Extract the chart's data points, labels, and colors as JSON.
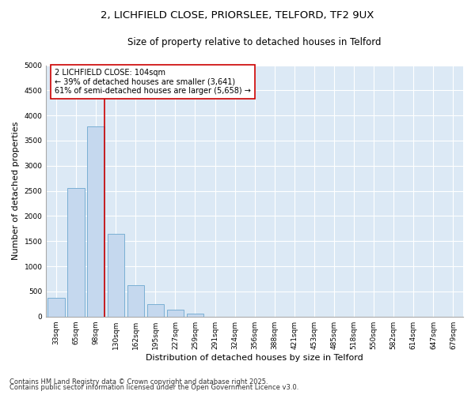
{
  "title_line1": "2, LICHFIELD CLOSE, PRIORSLEE, TELFORD, TF2 9UX",
  "title_line2": "Size of property relative to detached houses in Telford",
  "xlabel": "Distribution of detached houses by size in Telford",
  "ylabel": "Number of detached properties",
  "categories": [
    "33sqm",
    "65sqm",
    "98sqm",
    "130sqm",
    "162sqm",
    "195sqm",
    "227sqm",
    "259sqm",
    "291sqm",
    "324sqm",
    "356sqm",
    "388sqm",
    "421sqm",
    "453sqm",
    "485sqm",
    "518sqm",
    "550sqm",
    "582sqm",
    "614sqm",
    "647sqm",
    "679sqm"
  ],
  "values": [
    380,
    2550,
    3780,
    1650,
    620,
    250,
    140,
    60,
    0,
    0,
    0,
    0,
    0,
    0,
    0,
    0,
    0,
    0,
    0,
    0,
    0
  ],
  "bar_color": "#c5d8ee",
  "bar_edge_color": "#7aafd4",
  "plot_bg_color": "#dce9f5",
  "fig_bg_color": "#ffffff",
  "grid_color": "#ffffff",
  "vline_color": "#cc0000",
  "annotation_text": "2 LICHFIELD CLOSE: 104sqm\n← 39% of detached houses are smaller (3,641)\n61% of semi-detached houses are larger (5,658) →",
  "annotation_box_color": "#ffffff",
  "annotation_border_color": "#cc0000",
  "ylim": [
    0,
    5000
  ],
  "yticks": [
    0,
    500,
    1000,
    1500,
    2000,
    2500,
    3000,
    3500,
    4000,
    4500,
    5000
  ],
  "vline_position": 2.42,
  "footer_line1": "Contains HM Land Registry data © Crown copyright and database right 2025.",
  "footer_line2": "Contains public sector information licensed under the Open Government Licence v3.0.",
  "title_fontsize": 9.5,
  "subtitle_fontsize": 8.5,
  "tick_fontsize": 6.5,
  "label_fontsize": 8,
  "annotation_fontsize": 7,
  "footer_fontsize": 6
}
